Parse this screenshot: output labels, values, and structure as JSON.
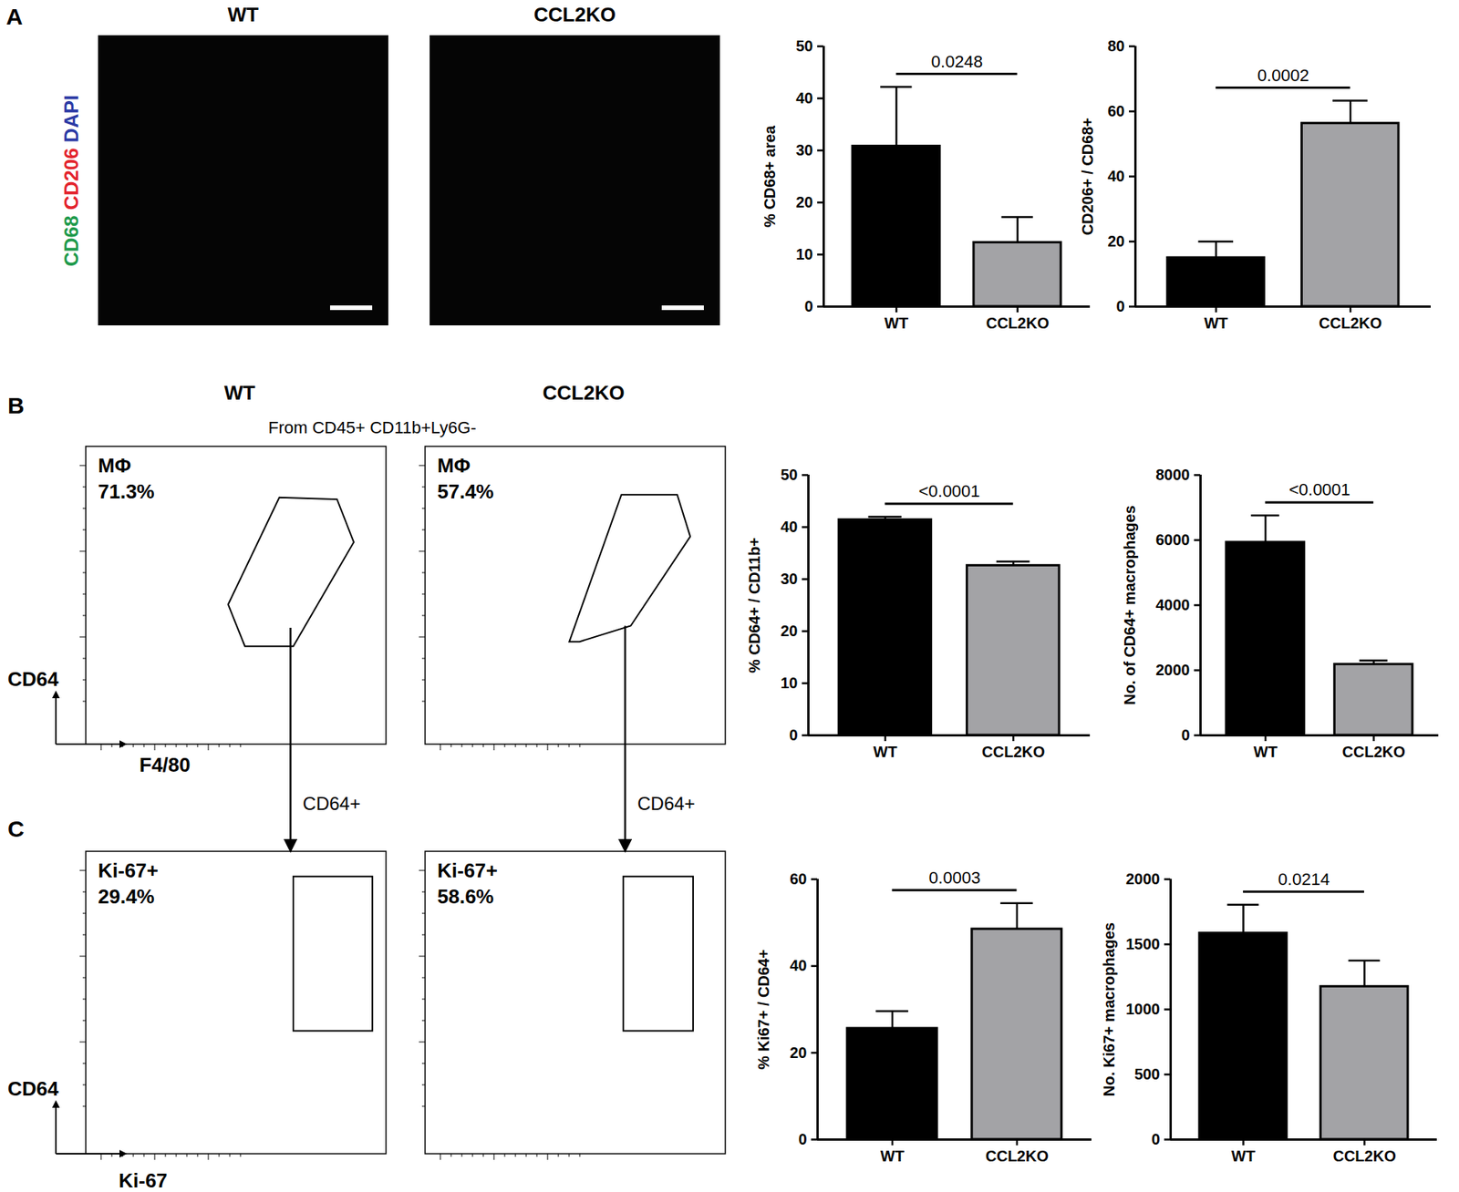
{
  "figure": {
    "panel_letters": [
      "A",
      "B",
      "C"
    ],
    "micrographs": {
      "titles": [
        "WT",
        "CCL2KO"
      ],
      "channels": [
        {
          "name": "CD68",
          "color": "#1e9a4b"
        },
        {
          "name": "CD206",
          "color": "#e3232c"
        },
        {
          "name": "DAPI",
          "color": "#2b3aa5"
        }
      ]
    },
    "flow": {
      "titles": [
        "WT",
        "CCL2KO"
      ],
      "gating": "From CD45+ CD11b+Ly6G-",
      "gate_arrow_label": "CD64+",
      "rows": [
        {
          "x_label": "F4/80",
          "y_label": "CD64",
          "gate": "MΦ",
          "gate_percent": [
            "71.3%",
            "57.4%"
          ]
        },
        {
          "x_label": "Ki-67",
          "y_label": "CD64",
          "gate": "Ki-67+",
          "gate_percent": [
            "29.4%",
            "58.6%"
          ]
        }
      ]
    }
  },
  "chart_data": [
    {
      "type": "bar",
      "categories": [
        "WT",
        "CCL2KO"
      ],
      "values": [
        30.8,
        12.3
      ],
      "errors": [
        11.4,
        4.9
      ],
      "colors": [
        "#000000",
        "#a3a3a6"
      ],
      "ylabel": "% CD68+ area",
      "ylim": [
        0,
        50
      ],
      "yticks": [
        0,
        10,
        20,
        30,
        40,
        50
      ],
      "annotation": "0.0248"
    },
    {
      "type": "bar",
      "categories": [
        "WT",
        "CCL2KO"
      ],
      "values": [
        15.0,
        56.3
      ],
      "errors": [
        5.0,
        7.0
      ],
      "colors": [
        "#000000",
        "#a3a3a6"
      ],
      "ylabel": "CD206+ / CD68+",
      "ylim": [
        0,
        80
      ],
      "yticks": [
        0,
        20,
        40,
        60,
        80
      ],
      "annotation": "0.0002"
    },
    {
      "type": "bar",
      "categories": [
        "WT",
        "CCL2KO"
      ],
      "values": [
        41.4,
        32.6
      ],
      "errors": [
        0.6,
        0.8
      ],
      "colors": [
        "#000000",
        "#a3a3a6"
      ],
      "ylabel": "% CD64+ / CD11b+",
      "ylim": [
        0,
        50
      ],
      "yticks": [
        0,
        10,
        20,
        30,
        40,
        50
      ],
      "annotation": "<0.0001"
    },
    {
      "type": "bar",
      "categories": [
        "WT",
        "CCL2KO"
      ],
      "values": [
        5930,
        2180
      ],
      "errors": [
        830,
        120
      ],
      "colors": [
        "#000000",
        "#a3a3a6"
      ],
      "ylabel": "No. of CD64+ macrophages",
      "ylim": [
        0,
        8000
      ],
      "yticks": [
        0,
        2000,
        4000,
        6000,
        8000
      ],
      "annotation": "<0.0001"
    },
    {
      "type": "bar",
      "categories": [
        "WT",
        "CCL2KO"
      ],
      "values": [
        25.6,
        48.5
      ],
      "errors": [
        4.0,
        6.0
      ],
      "colors": [
        "#000000",
        "#a3a3a6"
      ],
      "ylabel": "% Ki67+ / CD64+",
      "ylim": [
        0,
        60
      ],
      "yticks": [
        0,
        20,
        40,
        60
      ],
      "annotation": "0.0003"
    },
    {
      "type": "bar",
      "categories": [
        "WT",
        "CCL2KO"
      ],
      "values": [
        1585,
        1175
      ],
      "errors": [
        220,
        200
      ],
      "colors": [
        "#000000",
        "#a3a3a6"
      ],
      "ylabel": "No. Ki67+ macrophages",
      "ylim": [
        0,
        2000
      ],
      "yticks": [
        0,
        500,
        1000,
        1500,
        2000
      ],
      "annotation": "0.0214"
    }
  ]
}
